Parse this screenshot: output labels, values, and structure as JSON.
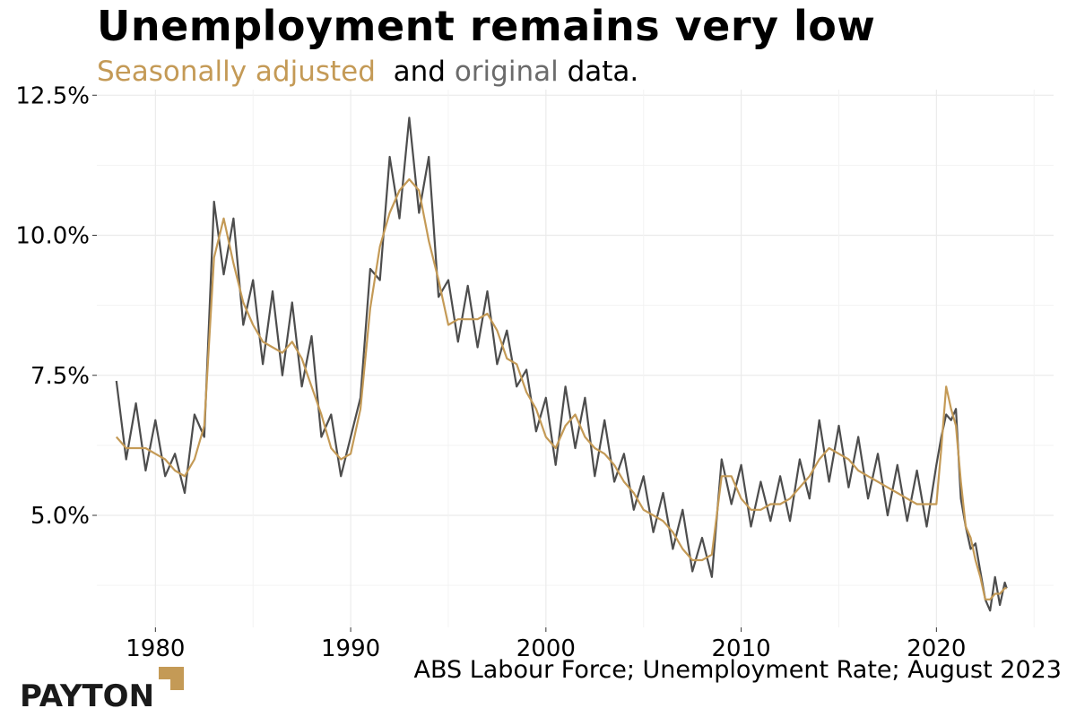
{
  "header": {
    "title": "Unemployment remains very low",
    "subtitle_part1": "Seasonally adjusted",
    "subtitle_part2": "and",
    "subtitle_part3": "original",
    "subtitle_part4": "data."
  },
  "footer": {
    "source": "ABS Labour Force; Unemployment Rate; August 2023",
    "logo_text": "PAYTON"
  },
  "colors": {
    "seasonally_adjusted": "#C49A56",
    "original": "#4D4D4D",
    "grid": "#EBEBEB"
  },
  "chart_data": {
    "type": "line",
    "title": "Unemployment remains very low",
    "xlabel": "",
    "ylabel": "",
    "xlim": [
      1977.0,
      2026.0
    ],
    "ylim": [
      3.0,
      12.6
    ],
    "y_ticks": [
      5.0,
      7.5,
      10.0,
      12.5
    ],
    "y_tick_labels": [
      "5.0%",
      "7.5%",
      "10.0%",
      "12.5%"
    ],
    "x_ticks": [
      1980,
      1990,
      2000,
      2010,
      2020
    ],
    "x_tick_labels": [
      "1980",
      "1990",
      "2000",
      "2010",
      "2020"
    ],
    "grid": true,
    "series": [
      {
        "name": "Seasonally adjusted",
        "color": "#C49A56",
        "x": [
          1978.0,
          1978.5,
          1979.0,
          1979.5,
          1980.0,
          1980.5,
          1981.0,
          1981.5,
          1982.0,
          1982.5,
          1983.0,
          1983.5,
          1984.0,
          1984.5,
          1985.0,
          1985.5,
          1986.0,
          1986.5,
          1987.0,
          1987.5,
          1988.0,
          1988.5,
          1989.0,
          1989.5,
          1990.0,
          1990.5,
          1991.0,
          1991.5,
          1992.0,
          1992.5,
          1993.0,
          1993.5,
          1994.0,
          1994.5,
          1995.0,
          1995.5,
          1996.0,
          1996.5,
          1997.0,
          1997.5,
          1998.0,
          1998.5,
          1999.0,
          1999.5,
          2000.0,
          2000.5,
          2001.0,
          2001.5,
          2002.0,
          2002.5,
          2003.0,
          2003.5,
          2004.0,
          2004.5,
          2005.0,
          2005.5,
          2006.0,
          2006.5,
          2007.0,
          2007.5,
          2008.0,
          2008.5,
          2009.0,
          2009.5,
          2010.0,
          2010.5,
          2011.0,
          2011.5,
          2012.0,
          2012.5,
          2013.0,
          2013.5,
          2014.0,
          2014.5,
          2015.0,
          2015.5,
          2016.0,
          2016.5,
          2017.0,
          2017.5,
          2018.0,
          2018.5,
          2019.0,
          2019.5,
          2020.0,
          2020.25,
          2020.5,
          2020.75,
          2021.0,
          2021.25,
          2021.5,
          2021.75,
          2022.0,
          2022.25,
          2022.5,
          2022.75,
          2023.0,
          2023.25,
          2023.5,
          2023.6
        ],
        "values": [
          6.4,
          6.2,
          6.2,
          6.2,
          6.1,
          6.0,
          5.8,
          5.7,
          6.0,
          6.6,
          9.6,
          10.3,
          9.5,
          8.8,
          8.4,
          8.1,
          8.0,
          7.9,
          8.1,
          7.8,
          7.3,
          6.8,
          6.2,
          6.0,
          6.1,
          6.9,
          8.7,
          9.8,
          10.4,
          10.8,
          11.0,
          10.8,
          9.9,
          9.2,
          8.4,
          8.5,
          8.5,
          8.5,
          8.6,
          8.3,
          7.8,
          7.7,
          7.2,
          6.9,
          6.4,
          6.2,
          6.6,
          6.8,
          6.4,
          6.2,
          6.1,
          5.9,
          5.6,
          5.4,
          5.1,
          5.0,
          4.9,
          4.7,
          4.4,
          4.2,
          4.2,
          4.3,
          5.7,
          5.7,
          5.3,
          5.1,
          5.1,
          5.2,
          5.2,
          5.3,
          5.5,
          5.7,
          6.0,
          6.2,
          6.1,
          6.0,
          5.8,
          5.7,
          5.6,
          5.5,
          5.4,
          5.3,
          5.2,
          5.2,
          5.2,
          6.2,
          7.3,
          6.9,
          6.6,
          5.6,
          4.8,
          4.6,
          4.2,
          3.9,
          3.5,
          3.5,
          3.6,
          3.6,
          3.7,
          3.7
        ]
      },
      {
        "name": "original",
        "color": "#4D4D4D",
        "x": [
          1978.0,
          1978.5,
          1979.0,
          1979.5,
          1980.0,
          1980.5,
          1981.0,
          1981.5,
          1982.0,
          1982.5,
          1983.0,
          1983.5,
          1984.0,
          1984.5,
          1985.0,
          1985.5,
          1986.0,
          1986.5,
          1987.0,
          1987.5,
          1988.0,
          1988.5,
          1989.0,
          1989.5,
          1990.0,
          1990.5,
          1991.0,
          1991.5,
          1992.0,
          1992.5,
          1993.0,
          1993.5,
          1994.0,
          1994.5,
          1995.0,
          1995.5,
          1996.0,
          1996.5,
          1997.0,
          1997.5,
          1998.0,
          1998.5,
          1999.0,
          1999.5,
          2000.0,
          2000.5,
          2001.0,
          2001.5,
          2002.0,
          2002.5,
          2003.0,
          2003.5,
          2004.0,
          2004.5,
          2005.0,
          2005.5,
          2006.0,
          2006.5,
          2007.0,
          2007.5,
          2008.0,
          2008.5,
          2009.0,
          2009.5,
          2010.0,
          2010.5,
          2011.0,
          2011.5,
          2012.0,
          2012.5,
          2013.0,
          2013.5,
          2014.0,
          2014.5,
          2015.0,
          2015.5,
          2016.0,
          2016.5,
          2017.0,
          2017.5,
          2018.0,
          2018.5,
          2019.0,
          2019.5,
          2020.0,
          2020.25,
          2020.5,
          2020.75,
          2021.0,
          2021.25,
          2021.5,
          2021.75,
          2022.0,
          2022.25,
          2022.5,
          2022.75,
          2023.0,
          2023.25,
          2023.5,
          2023.6
        ],
        "values": [
          7.4,
          6.0,
          7.0,
          5.8,
          6.7,
          5.7,
          6.1,
          5.4,
          6.8,
          6.4,
          10.6,
          9.3,
          10.3,
          8.4,
          9.2,
          7.7,
          9.0,
          7.5,
          8.8,
          7.3,
          8.2,
          6.4,
          6.8,
          5.7,
          6.4,
          7.1,
          9.4,
          9.2,
          11.4,
          10.3,
          12.1,
          10.4,
          11.4,
          8.9,
          9.2,
          8.1,
          9.1,
          8.0,
          9.0,
          7.7,
          8.3,
          7.3,
          7.6,
          6.5,
          7.1,
          5.9,
          7.3,
          6.2,
          7.1,
          5.7,
          6.7,
          5.6,
          6.1,
          5.1,
          5.7,
          4.7,
          5.4,
          4.4,
          5.1,
          4.0,
          4.6,
          3.9,
          6.0,
          5.2,
          5.9,
          4.8,
          5.6,
          4.9,
          5.7,
          4.9,
          6.0,
          5.3,
          6.7,
          5.6,
          6.6,
          5.5,
          6.4,
          5.3,
          6.1,
          5.0,
          5.9,
          4.9,
          5.8,
          4.8,
          5.9,
          6.4,
          6.8,
          6.7,
          6.9,
          5.3,
          4.8,
          4.4,
          4.5,
          4.0,
          3.5,
          3.3,
          3.9,
          3.4,
          3.8,
          3.7
        ]
      }
    ]
  }
}
